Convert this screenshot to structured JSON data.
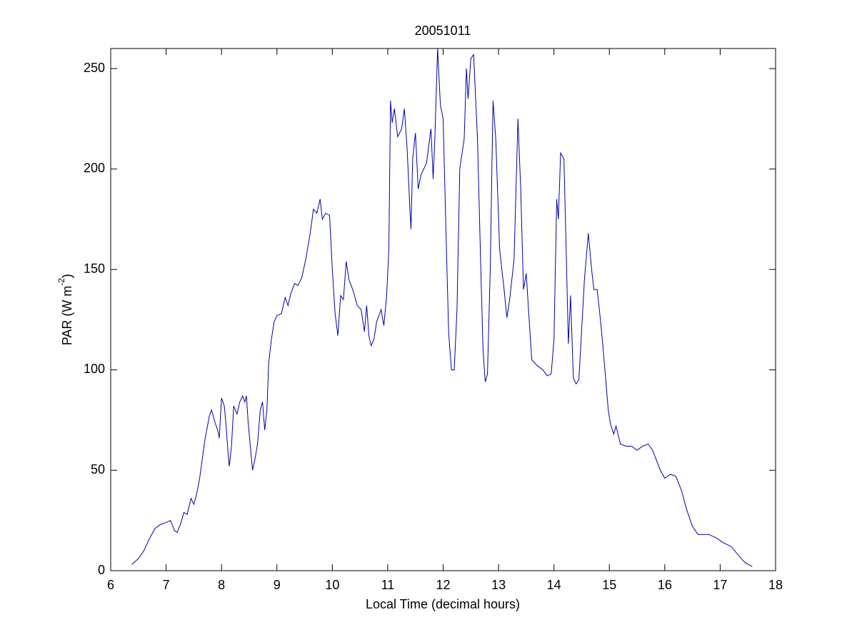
{
  "chart_data": {
    "type": "line",
    "title": "20051011",
    "xlabel": "Local Time (decimal hours)",
    "ylabel_parts": [
      "PAR (W m",
      "-2",
      ")"
    ],
    "xlim": [
      6,
      18
    ],
    "xticks": [
      6,
      7,
      8,
      9,
      10,
      11,
      12,
      13,
      14,
      15,
      16,
      17,
      18
    ],
    "ylim": [
      0,
      260
    ],
    "yticks": [
      0,
      50,
      100,
      150,
      200,
      250
    ],
    "grid": false,
    "series": [
      {
        "name": "PAR",
        "color": "#0000aa",
        "x": [
          6.38,
          6.5,
          6.6,
          6.7,
          6.8,
          6.9,
          7.0,
          7.08,
          7.15,
          7.2,
          7.27,
          7.32,
          7.38,
          7.45,
          7.5,
          7.55,
          7.6,
          7.65,
          7.7,
          7.78,
          7.82,
          7.88,
          7.93,
          7.96,
          8.0,
          8.05,
          8.08,
          8.12,
          8.14,
          8.18,
          8.22,
          8.28,
          8.33,
          8.38,
          8.42,
          8.45,
          8.48,
          8.52,
          8.56,
          8.6,
          8.65,
          8.7,
          8.74,
          8.78,
          8.82,
          8.85,
          8.9,
          8.95,
          9.0,
          9.08,
          9.15,
          9.2,
          9.25,
          9.32,
          9.38,
          9.45,
          9.52,
          9.6,
          9.66,
          9.72,
          9.78,
          9.82,
          9.88,
          9.95,
          10.0,
          10.05,
          10.1,
          10.15,
          10.2,
          10.25,
          10.3,
          10.38,
          10.45,
          10.52,
          10.58,
          10.62,
          10.66,
          10.7,
          10.75,
          10.8,
          10.88,
          10.93,
          10.98,
          11.02,
          11.05,
          11.08,
          11.12,
          11.18,
          11.25,
          11.3,
          11.35,
          11.4,
          11.42,
          11.45,
          11.5,
          11.55,
          11.6,
          11.7,
          11.78,
          11.82,
          11.85,
          11.9,
          11.95,
          12.0,
          12.05,
          12.1,
          12.15,
          12.2,
          12.25,
          12.3,
          12.38,
          12.42,
          12.45,
          12.5,
          12.55,
          12.62,
          12.68,
          12.72,
          12.76,
          12.8,
          12.85,
          12.9,
          12.95,
          13.02,
          13.06,
          13.1,
          13.15,
          13.2,
          13.28,
          13.35,
          13.4,
          13.45,
          13.5,
          13.55,
          13.6,
          13.7,
          13.8,
          13.88,
          13.95,
          14.0,
          14.05,
          14.08,
          14.12,
          14.18,
          14.22,
          14.26,
          14.3,
          14.35,
          14.4,
          14.45,
          14.5,
          14.55,
          14.62,
          14.68,
          14.72,
          14.78,
          14.85,
          14.92,
          14.98,
          15.02,
          15.08,
          15.12,
          15.2,
          15.3,
          15.4,
          15.5,
          15.6,
          15.7,
          15.78,
          15.85,
          15.92,
          16.0,
          16.1,
          16.2,
          16.3,
          16.4,
          16.5,
          16.6,
          16.8,
          16.95,
          17.05,
          17.2,
          17.35,
          17.45,
          17.58
        ],
        "values": [
          3,
          6,
          10,
          16,
          21,
          23,
          24,
          25,
          20,
          19,
          24,
          29,
          28,
          36,
          33,
          38,
          45,
          55,
          65,
          77,
          80,
          74,
          70,
          66,
          86,
          82,
          73,
          58,
          52,
          62,
          82,
          78,
          84,
          87,
          84,
          87,
          74,
          62,
          50,
          55,
          63,
          80,
          84,
          70,
          80,
          103,
          115,
          124,
          127,
          128,
          136,
          132,
          138,
          143,
          142,
          146,
          155,
          168,
          180,
          178,
          185,
          175,
          178,
          177,
          150,
          128,
          117,
          137,
          135,
          154,
          145,
          139,
          132,
          130,
          119,
          132,
          117,
          112,
          115,
          124,
          130,
          122,
          137,
          160,
          234,
          223,
          230,
          216,
          220,
          230,
          210,
          180,
          170,
          205,
          218,
          190,
          197,
          203,
          220,
          195,
          215,
          260,
          232,
          225,
          170,
          118,
          100,
          100,
          130,
          200,
          215,
          250,
          235,
          255,
          257,
          215,
          150,
          110,
          94,
          98,
          150,
          234,
          215,
          160,
          150,
          140,
          126,
          135,
          155,
          225,
          190,
          140,
          148,
          126,
          105,
          102,
          100,
          97,
          98,
          115,
          185,
          175,
          208,
          205,
          160,
          113,
          137,
          96,
          93,
          95,
          120,
          145,
          168,
          150,
          140,
          140,
          122,
          100,
          80,
          73,
          68,
          72,
          63,
          62,
          62,
          60,
          62,
          63,
          60,
          55,
          50,
          46,
          48,
          47,
          40,
          30,
          22,
          18,
          18,
          16,
          14,
          12,
          7,
          4,
          2
        ]
      }
    ]
  }
}
